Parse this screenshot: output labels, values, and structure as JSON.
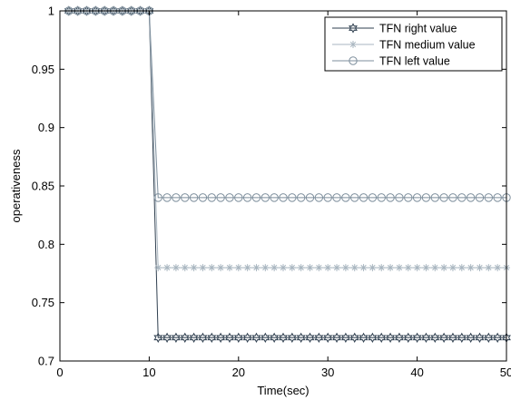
{
  "chart_data": {
    "type": "line",
    "xlabel": "Time(sec)",
    "ylabel": "operativeness",
    "xlim": [
      0,
      50
    ],
    "ylim": [
      0.7,
      1.0
    ],
    "xticks": [
      0,
      10,
      20,
      30,
      40,
      50
    ],
    "yticks": [
      0.7,
      0.75,
      0.8,
      0.85,
      0.9,
      0.95,
      1.0
    ],
    "ytick_labels": [
      "0.7",
      "0.75",
      "0.8",
      "0.85",
      "0.9",
      "0.95",
      "1"
    ],
    "grid": false,
    "legend_position": "top-right",
    "x": [
      1,
      2,
      3,
      4,
      5,
      6,
      7,
      8,
      9,
      10,
      11,
      12,
      13,
      14,
      15,
      16,
      17,
      18,
      19,
      20,
      21,
      22,
      23,
      24,
      25,
      26,
      27,
      28,
      29,
      30,
      31,
      32,
      33,
      34,
      35,
      36,
      37,
      38,
      39,
      40,
      41,
      42,
      43,
      44,
      45,
      46,
      47,
      48,
      49,
      50
    ],
    "series": [
      {
        "name": "TFN right value",
        "marker": "hexagram",
        "color": "#2f3f4f",
        "values": [
          1,
          1,
          1,
          1,
          1,
          1,
          1,
          1,
          1,
          1,
          0.72,
          0.72,
          0.72,
          0.72,
          0.72,
          0.72,
          0.72,
          0.72,
          0.72,
          0.72,
          0.72,
          0.72,
          0.72,
          0.72,
          0.72,
          0.72,
          0.72,
          0.72,
          0.72,
          0.72,
          0.72,
          0.72,
          0.72,
          0.72,
          0.72,
          0.72,
          0.72,
          0.72,
          0.72,
          0.72,
          0.72,
          0.72,
          0.72,
          0.72,
          0.72,
          0.72,
          0.72,
          0.72,
          0.72,
          0.72
        ]
      },
      {
        "name": "TFN medium value",
        "marker": "asterisk",
        "color": "#a9b6c0",
        "values": [
          1,
          1,
          1,
          1,
          1,
          1,
          1,
          1,
          1,
          1,
          0.78,
          0.78,
          0.78,
          0.78,
          0.78,
          0.78,
          0.78,
          0.78,
          0.78,
          0.78,
          0.78,
          0.78,
          0.78,
          0.78,
          0.78,
          0.78,
          0.78,
          0.78,
          0.78,
          0.78,
          0.78,
          0.78,
          0.78,
          0.78,
          0.78,
          0.78,
          0.78,
          0.78,
          0.78,
          0.78,
          0.78,
          0.78,
          0.78,
          0.78,
          0.78,
          0.78,
          0.78,
          0.78,
          0.78,
          0.78
        ]
      },
      {
        "name": "TFN left value",
        "marker": "circle",
        "color": "#7d8e9c",
        "values": [
          1,
          1,
          1,
          1,
          1,
          1,
          1,
          1,
          1,
          1,
          0.84,
          0.84,
          0.84,
          0.84,
          0.84,
          0.84,
          0.84,
          0.84,
          0.84,
          0.84,
          0.84,
          0.84,
          0.84,
          0.84,
          0.84,
          0.84,
          0.84,
          0.84,
          0.84,
          0.84,
          0.84,
          0.84,
          0.84,
          0.84,
          0.84,
          0.84,
          0.84,
          0.84,
          0.84,
          0.84,
          0.84,
          0.84,
          0.84,
          0.84,
          0.84,
          0.84,
          0.84,
          0.84,
          0.84,
          0.84
        ]
      }
    ]
  }
}
